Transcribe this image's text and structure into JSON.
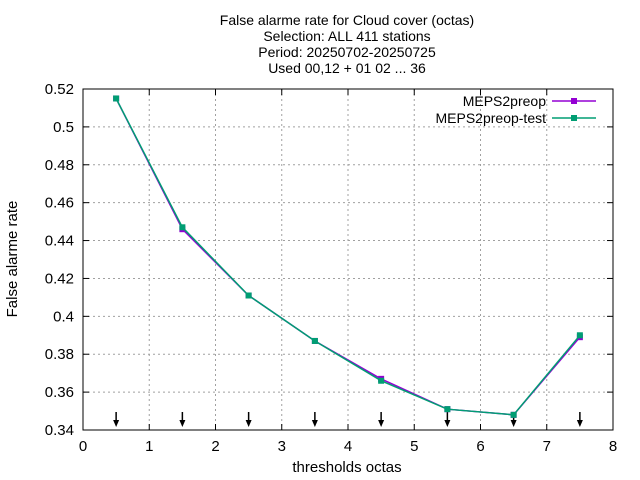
{
  "chart_data": {
    "type": "line",
    "title_lines": [
      "False alarme rate  for Cloud cover (octas)",
      "Selection: ALL    411 stations",
      "Period: 20250702-20250725",
      "Used 00,12 + 01 02 ... 36"
    ],
    "xlabel": "thresholds octas",
    "ylabel": "False alarme rate",
    "xlim": [
      0,
      8
    ],
    "ylim": [
      0.34,
      0.52
    ],
    "x_ticks": [
      "0",
      "1",
      "2",
      "3",
      "4",
      "5",
      "6",
      "7",
      "8"
    ],
    "y_ticks": [
      "0.34",
      "0.36",
      "0.38",
      "0.4",
      "0.42",
      "0.44",
      "0.46",
      "0.48",
      "0.5",
      "0.52"
    ],
    "grid": true,
    "legend_position": "top-right",
    "x": [
      0.5,
      1.5,
      2.5,
      3.5,
      4.5,
      5.5,
      6.5,
      7.5
    ],
    "series": [
      {
        "name": "MEPS2preop",
        "color": "#9400d3",
        "values": [
          0.515,
          0.446,
          0.411,
          0.387,
          0.367,
          0.351,
          0.348,
          0.389
        ]
      },
      {
        "name": "MEPS2preop-test",
        "color": "#009e73",
        "values": [
          0.515,
          0.447,
          0.411,
          0.387,
          0.366,
          0.351,
          0.348,
          0.39
        ]
      }
    ],
    "arrow_markers_x": [
      0.5,
      1.5,
      2.5,
      3.5,
      4.5,
      5.5,
      6.5,
      7.5
    ]
  }
}
